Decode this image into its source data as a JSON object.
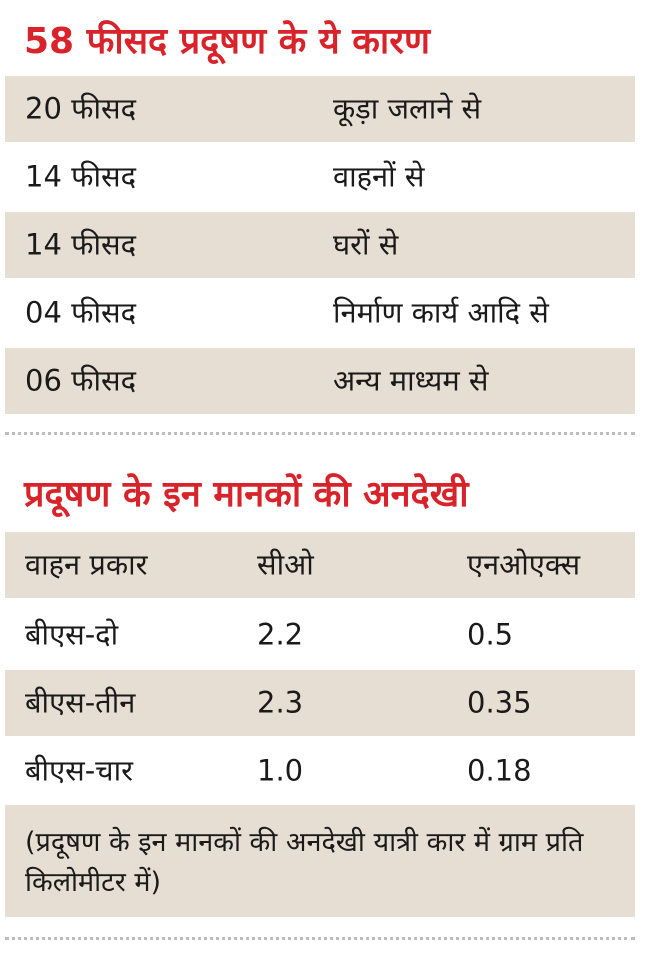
{
  "section1": {
    "title": "58 फीसद प्रदूषण के ये कारण",
    "rows": [
      {
        "percent": "20 फीसद",
        "cause": "कूड़ा जलाने से"
      },
      {
        "percent": "14 फीसद",
        "cause": "वाहनों से"
      },
      {
        "percent": "14 फीसद",
        "cause": "घरों से"
      },
      {
        "percent": "04 फीसद",
        "cause": "निर्माण कार्य आदि से"
      },
      {
        "percent": "06 फीसद",
        "cause": "अन्य माध्यम से"
      }
    ]
  },
  "section2": {
    "title": "प्रदूषण के इन मानकों की अनदेखी",
    "headers": [
      "वाहन प्रकार",
      "सीओ",
      "एनओएक्स"
    ],
    "rows": [
      [
        "बीएस-दो",
        "2.2",
        "0.5"
      ],
      [
        "बीएस-तीन",
        "2.3",
        "0.35"
      ],
      [
        "बीएस-चार",
        "1.0",
        "0.18"
      ]
    ],
    "note": "(प्रदूषण के इन मानकों की अनदेखी यात्री कार में ग्राम प्रति किलोमीटर में)"
  },
  "colors": {
    "heading": "#d8232a",
    "shade": "#e6ddd3"
  }
}
